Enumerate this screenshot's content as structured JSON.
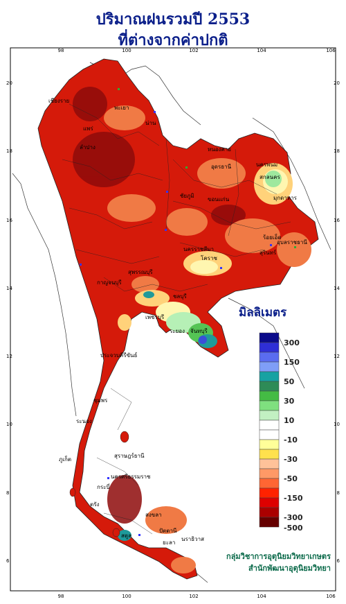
{
  "title_line1": "ปริมาณฝนรวมปี 2553",
  "title_line2": "ที่ต่างจากค่าปกติ",
  "axis": {
    "lon_ticks": [
      "98",
      "100",
      "102",
      "104",
      "106"
    ],
    "lat_ticks": [
      "20",
      "18",
      "16",
      "14",
      "12",
      "10",
      "8",
      "6"
    ]
  },
  "legend": {
    "title": "มิลลิเมตร",
    "colors": [
      "#0a0a8a",
      "#2f2fd6",
      "#5a6cf0",
      "#7f9ef7",
      "#17a2a2",
      "#2e8b57",
      "#44bb44",
      "#7fe07f",
      "#c2f0c2",
      "#ffffff",
      "#ffffff",
      "#ffff99",
      "#ffe14d",
      "#ffc299",
      "#ff9966",
      "#ff6633",
      "#ff2200",
      "#dd0000",
      "#aa0000",
      "#660000"
    ],
    "labels": [
      "300",
      "150",
      "50",
      "30",
      "10",
      "-10",
      "-30",
      "-50",
      "-150",
      "-300",
      "-500"
    ]
  },
  "place_labels": [
    "เชียงราย",
    "พะเยา",
    "น่าน",
    "ลำปาง",
    "แพร่",
    "หนองคาย",
    "อุดรธานี",
    "นครพนม",
    "สกลนคร",
    "มุกดาหาร",
    "ขอนแก่น",
    "ชัยภูมิ",
    "ร้อยเอ็ด",
    "อุบลราชธานี",
    "นครราชสีมา",
    "สุรินทร์",
    "โคราช",
    "กาญจนบุรี",
    "สุพรรณบุรี",
    "ชลบุรี",
    "ระยอง",
    "จันทบุรี",
    "เพชรบุรี",
    "ประจวบคีรีขันธ์",
    "ชุมพร",
    "ระนอง",
    "ภูเก็ต",
    "สุราษฎร์ธานี",
    "นครศรีธรรมราช",
    "กระบี่",
    "ตรัง",
    "สงขลา",
    "ปัตตานี",
    "นราธิวาส",
    "ยะลา",
    "สตูล"
  ],
  "credit_line1": "กลุ่มวิชาการอุตุนิยมวิทยาเกษตร",
  "credit_line2": "สำนักพัฒนาอุตุนิยมวิทยา"
}
